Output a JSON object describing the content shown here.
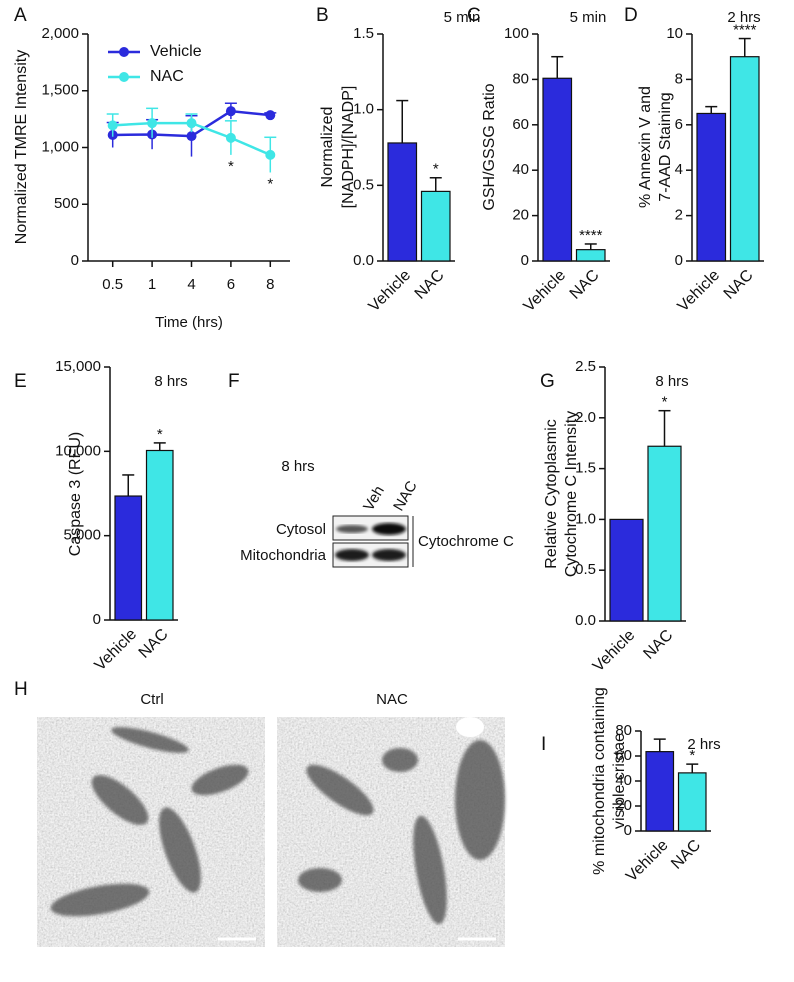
{
  "chart_data": [
    {
      "type": "line",
      "letter": "A",
      "categories": [
        "0.5",
        "1",
        "4",
        "6",
        "8"
      ],
      "xlabel": "Time (hrs)",
      "ylabel": [
        "Normalized TMRE Intensity"
      ],
      "ylim": [
        0,
        2000
      ],
      "yticks": [
        0,
        500,
        {
          "value": 1000,
          "label": "1,000"
        },
        {
          "value": 1500,
          "label": "1,500"
        },
        {
          "value": 2000,
          "label": "2,000"
        }
      ],
      "series": [
        {
          "name": "Vehicle",
          "color": "#2b2bdc",
          "values": [
            1110,
            1115,
            1100,
            1320,
            1285
          ],
          "errors": [
            110,
            130,
            180,
            70,
            20
          ],
          "annotations": [
            null,
            null,
            null,
            null,
            null
          ]
        },
        {
          "name": "NAC",
          "color": "#3fe6e6",
          "values": [
            1195,
            1215,
            1215,
            1085,
            935
          ],
          "errors": [
            100,
            130,
            80,
            150,
            155
          ],
          "annotations": [
            null,
            null,
            null,
            "*",
            "*"
          ]
        }
      ]
    },
    {
      "type": "bar",
      "letter": "B",
      "subtitle": "5 min",
      "ylabel": [
        "Normalized",
        "[NADPH]/[NADP]"
      ],
      "categories": [
        "Vehicle",
        "NAC"
      ],
      "values": [
        0.78,
        0.46
      ],
      "errors": [
        0.28,
        0.09
      ],
      "colors": [
        "#2b2bdc",
        "#3fe6e6"
      ],
      "annotations": [
        null,
        "*"
      ],
      "ylim": [
        0,
        1.5
      ],
      "yticks": [
        {
          "value": 0,
          "label": "0.0"
        },
        0.5,
        {
          "value": 1,
          "label": "1.0"
        },
        1.5
      ]
    },
    {
      "type": "bar",
      "letter": "C",
      "subtitle": "5 min",
      "ylabel": [
        "GSH/GSSG Ratio"
      ],
      "categories": [
        "Vehicle",
        "NAC"
      ],
      "values": [
        80.5,
        5
      ],
      "errors": [
        9.5,
        2.5
      ],
      "colors": [
        "#2b2bdc",
        "#3fe6e6"
      ],
      "annotations": [
        null,
        "****"
      ],
      "ylim": [
        0,
        100
      ],
      "yticks": [
        0,
        20,
        40,
        60,
        80,
        100
      ]
    },
    {
      "type": "bar",
      "letter": "D",
      "subtitle": "2 hrs",
      "ylabel": [
        "% Annexin V and",
        "7-AAD Staining"
      ],
      "categories": [
        "Vehicle",
        "NAC"
      ],
      "values": [
        6.5,
        9
      ],
      "errors": [
        0.3,
        0.8
      ],
      "colors": [
        "#2b2bdc",
        "#3fe6e6"
      ],
      "annotations": [
        null,
        "****"
      ],
      "ylim": [
        0,
        10
      ],
      "yticks": [
        0,
        2,
        4,
        6,
        8,
        10
      ]
    },
    {
      "type": "bar",
      "letter": "E",
      "subtitle": "8 hrs",
      "ylabel": [
        "Caspase 3 (RFU)"
      ],
      "categories": [
        "Vehicle",
        "NAC"
      ],
      "values": [
        7350,
        10050
      ],
      "errors": [
        1250,
        450
      ],
      "colors": [
        "#2b2bdc",
        "#3fe6e6"
      ],
      "annotations": [
        null,
        "*"
      ],
      "ylim": [
        0,
        15000
      ],
      "yticks": [
        0,
        {
          "value": 5000,
          "label": "5,000"
        },
        {
          "value": 10000,
          "label": "10,000"
        },
        {
          "value": 15000,
          "label": "15,000"
        }
      ]
    },
    {
      "type": "bar",
      "letter": "G",
      "subtitle": "8 hrs",
      "ylabel": [
        "Relative Cytoplasmic",
        "Cytochrome C Intensity"
      ],
      "categories": [
        "Vehicle",
        "NAC"
      ],
      "values": [
        1,
        1.72
      ],
      "errors": [
        null,
        0.35
      ],
      "colors": [
        "#2b2bdc",
        "#3fe6e6"
      ],
      "annotations": [
        null,
        "*"
      ],
      "ylim": [
        0,
        2.5
      ],
      "yticks": [
        {
          "value": 0,
          "label": "0.0"
        },
        0.5,
        {
          "value": 1,
          "label": "1.0"
        },
        1.5,
        {
          "value": 2,
          "label": "2.0"
        },
        2.5
      ]
    },
    {
      "type": "bar",
      "letter": "I",
      "subtitle": "2 hrs",
      "ylabel": [
        "% mitochondria containing",
        "visible cristae"
      ],
      "categories": [
        "Vehicle",
        "NAC"
      ],
      "values": [
        63.5,
        46.5
      ],
      "errors": [
        10,
        7
      ],
      "colors": [
        "#2b2bdc",
        "#3fe6e6"
      ],
      "annotations": [
        null,
        "*"
      ],
      "ylim": [
        0,
        80
      ],
      "yticks": [
        0,
        20,
        40,
        60,
        80
      ]
    }
  ],
  "blot": {
    "letter": "F",
    "title": "8 hrs",
    "lanes": [
      "Veh",
      "NAC"
    ],
    "rows": [
      "Cytosol",
      "Mitochondria"
    ],
    "protein": "Cytochrome C"
  },
  "images": {
    "letter": "H",
    "labels": [
      "Ctrl",
      "NAC"
    ]
  }
}
